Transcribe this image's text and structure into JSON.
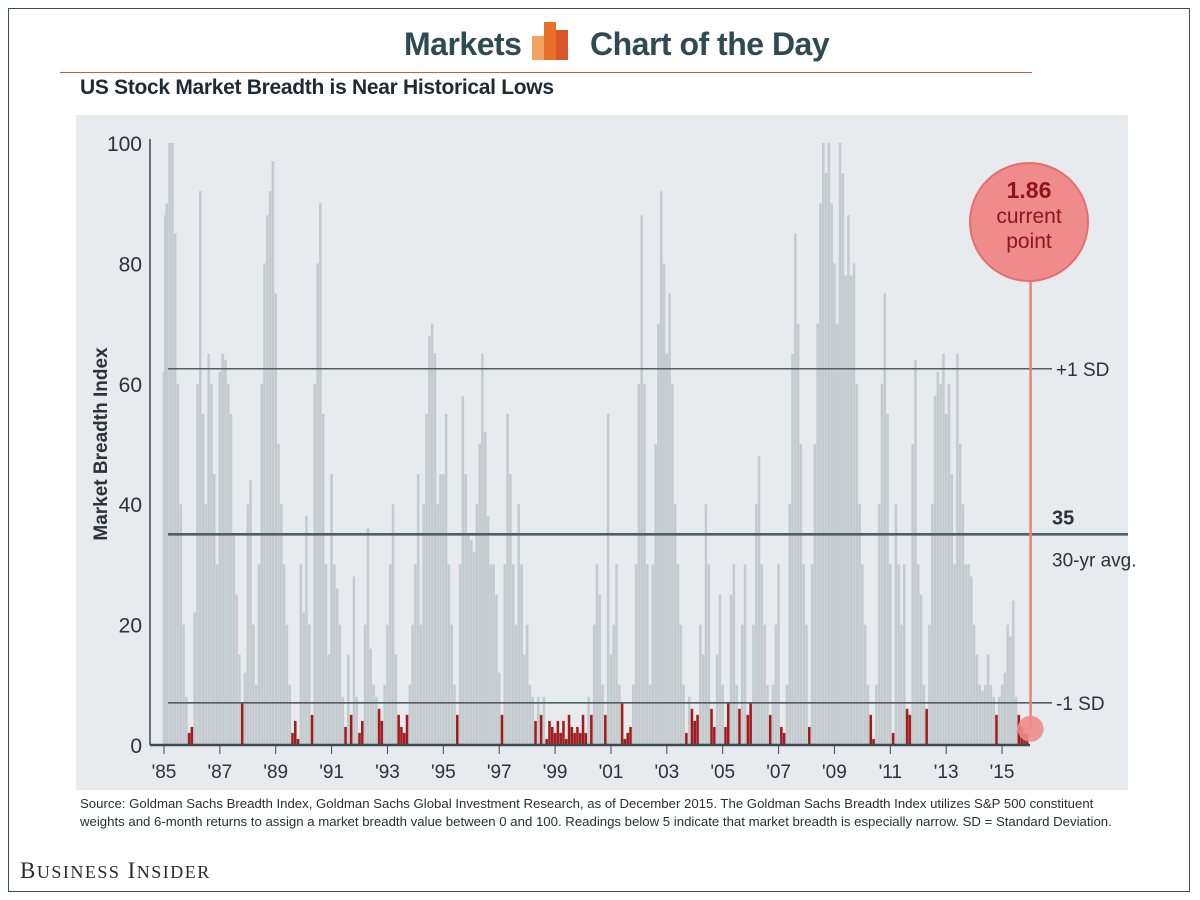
{
  "header": {
    "left_label": "Markets",
    "right_label": "Chart of the Day",
    "logo_icon": "bar-chart-logo-icon",
    "accent_color": "#e8702a"
  },
  "footer": {
    "source_text": "Source: Goldman Sachs Breadth Index, Goldman Sachs Global Investment Research, as of December 2015. The Goldman Sachs Breadth Index utilizes S&P 500 constituent weights and 6-month returns to assign a market breadth value between 0 and 100. Readings below 5 indicate that market breadth is especially narrow. SD = Standard Deviation.",
    "publisher": "Business Insider"
  },
  "chart_data": {
    "type": "bar",
    "title": "US Stock Market Breadth is Near Historical Lows",
    "xlabel": "",
    "ylabel": "Market Breadth Index",
    "ylim": [
      0,
      100
    ],
    "xlim": [
      1984.5,
      2016.0
    ],
    "yticks": [
      0,
      20,
      40,
      60,
      80,
      100
    ],
    "xticks": [
      {
        "x": 1985,
        "label": "'85"
      },
      {
        "x": 1987,
        "label": "'87"
      },
      {
        "x": 1989,
        "label": "'89"
      },
      {
        "x": 1991,
        "label": "'91"
      },
      {
        "x": 1993,
        "label": "'93"
      },
      {
        "x": 1995,
        "label": "'95"
      },
      {
        "x": 1997,
        "label": "'97"
      },
      {
        "x": 1999,
        "label": "'99"
      },
      {
        "x": 2001,
        "label": "'01"
      },
      {
        "x": 2003,
        "label": "'03"
      },
      {
        "x": 2005,
        "label": "'05"
      },
      {
        "x": 2007,
        "label": "'07"
      },
      {
        "x": 2009,
        "label": "'09"
      },
      {
        "x": 2011,
        "label": "'11"
      },
      {
        "x": 2013,
        "label": "'13"
      },
      {
        "x": 2015,
        "label": "'15"
      }
    ],
    "grid": false,
    "colors": {
      "normal": "#c4cbcf",
      "narrow": "#a11d1d",
      "lines": "#4d6068",
      "highlight": "#f08b8b"
    },
    "narrow_threshold": 7,
    "reference_lines": [
      {
        "y": 62.5,
        "label": "+1 SD"
      },
      {
        "y": 35,
        "label": "35",
        "sublabel": "30-yr avg.",
        "emphasis": true
      },
      {
        "y": 7,
        "label": "-1 SD"
      }
    ],
    "current_point": {
      "x": 2015.95,
      "y": 1.86,
      "value_label": "1.86",
      "label_line1": "current",
      "label_line2": "point"
    },
    "anchors": [
      [
        1985.0,
        62
      ],
      [
        1985.05,
        88
      ],
      [
        1985.1,
        90
      ],
      [
        1985.2,
        100
      ],
      [
        1985.3,
        100
      ],
      [
        1985.4,
        85
      ],
      [
        1985.5,
        60
      ],
      [
        1985.6,
        40
      ],
      [
        1985.7,
        20
      ],
      [
        1985.8,
        8
      ],
      [
        1985.9,
        2
      ],
      [
        1986.0,
        3
      ],
      [
        1986.1,
        22
      ],
      [
        1986.2,
        60
      ],
      [
        1986.3,
        92
      ],
      [
        1986.4,
        55
      ],
      [
        1986.5,
        40
      ],
      [
        1986.6,
        65
      ],
      [
        1986.7,
        60
      ],
      [
        1986.8,
        45
      ],
      [
        1986.9,
        30
      ],
      [
        1987.0,
        62
      ],
      [
        1987.1,
        65
      ],
      [
        1987.2,
        64
      ],
      [
        1987.3,
        60
      ],
      [
        1987.4,
        55
      ],
      [
        1987.5,
        35
      ],
      [
        1987.6,
        25
      ],
      [
        1987.7,
        15
      ],
      [
        1987.8,
        7
      ],
      [
        1987.9,
        12
      ],
      [
        1988.0,
        40
      ],
      [
        1988.1,
        44
      ],
      [
        1988.2,
        20
      ],
      [
        1988.3,
        10
      ],
      [
        1988.4,
        30
      ],
      [
        1988.5,
        60
      ],
      [
        1988.6,
        80
      ],
      [
        1988.7,
        88
      ],
      [
        1988.8,
        92
      ],
      [
        1988.9,
        97
      ],
      [
        1989.0,
        75
      ],
      [
        1989.1,
        50
      ],
      [
        1989.2,
        40
      ],
      [
        1989.3,
        30
      ],
      [
        1989.4,
        20
      ],
      [
        1989.5,
        10
      ],
      [
        1989.6,
        2
      ],
      [
        1989.7,
        4
      ],
      [
        1989.8,
        1
      ],
      [
        1989.9,
        30
      ],
      [
        1990.0,
        22
      ],
      [
        1990.1,
        38
      ],
      [
        1990.2,
        20
      ],
      [
        1990.3,
        5
      ],
      [
        1990.4,
        60
      ],
      [
        1990.5,
        80
      ],
      [
        1990.6,
        90
      ],
      [
        1990.7,
        55
      ],
      [
        1990.8,
        30
      ],
      [
        1990.9,
        15
      ],
      [
        1991.0,
        45
      ],
      [
        1991.1,
        30
      ],
      [
        1991.2,
        26
      ],
      [
        1991.3,
        20
      ],
      [
        1991.4,
        8
      ],
      [
        1991.5,
        3
      ],
      [
        1991.6,
        15
      ],
      [
        1991.7,
        5
      ],
      [
        1991.8,
        28
      ],
      [
        1991.9,
        8
      ],
      [
        1992.0,
        2
      ],
      [
        1992.1,
        4
      ],
      [
        1992.2,
        20
      ],
      [
        1992.3,
        36
      ],
      [
        1992.4,
        16
      ],
      [
        1992.5,
        10
      ],
      [
        1992.6,
        8
      ],
      [
        1992.7,
        6
      ],
      [
        1992.8,
        4
      ],
      [
        1992.9,
        10
      ],
      [
        1993.0,
        20
      ],
      [
        1993.1,
        30
      ],
      [
        1993.2,
        40
      ],
      [
        1993.3,
        15
      ],
      [
        1993.4,
        5
      ],
      [
        1993.5,
        3
      ],
      [
        1993.6,
        2
      ],
      [
        1993.7,
        5
      ],
      [
        1993.8,
        10
      ],
      [
        1993.9,
        20
      ],
      [
        1994.0,
        30
      ],
      [
        1994.1,
        45
      ],
      [
        1994.2,
        20
      ],
      [
        1994.3,
        40
      ],
      [
        1994.4,
        55
      ],
      [
        1994.5,
        68
      ],
      [
        1994.6,
        70
      ],
      [
        1994.7,
        65
      ],
      [
        1994.8,
        40
      ],
      [
        1994.9,
        45
      ],
      [
        1995.0,
        45
      ],
      [
        1995.1,
        55
      ],
      [
        1995.2,
        30
      ],
      [
        1995.3,
        20
      ],
      [
        1995.4,
        10
      ],
      [
        1995.5,
        5
      ],
      [
        1995.6,
        30
      ],
      [
        1995.7,
        58
      ],
      [
        1995.8,
        45
      ],
      [
        1995.9,
        35
      ],
      [
        1996.0,
        34
      ],
      [
        1996.1,
        32
      ],
      [
        1996.2,
        40
      ],
      [
        1996.3,
        50
      ],
      [
        1996.4,
        65
      ],
      [
        1996.5,
        52
      ],
      [
        1996.6,
        38
      ],
      [
        1996.7,
        30
      ],
      [
        1996.8,
        30
      ],
      [
        1996.9,
        25
      ],
      [
        1997.0,
        12
      ],
      [
        1997.1,
        5
      ],
      [
        1997.2,
        30
      ],
      [
        1997.3,
        55
      ],
      [
        1997.4,
        45
      ],
      [
        1997.5,
        30
      ],
      [
        1997.6,
        20
      ],
      [
        1997.7,
        40
      ],
      [
        1997.8,
        30
      ],
      [
        1997.9,
        15
      ],
      [
        1998.0,
        20
      ],
      [
        1998.1,
        10
      ],
      [
        1998.2,
        8
      ],
      [
        1998.3,
        4
      ],
      [
        1998.4,
        8
      ],
      [
        1998.5,
        5
      ],
      [
        1998.6,
        8
      ],
      [
        1998.7,
        1
      ],
      [
        1998.8,
        4
      ],
      [
        1998.9,
        3
      ],
      [
        1999.0,
        2
      ],
      [
        1999.1,
        4
      ],
      [
        1999.2,
        2
      ],
      [
        1999.3,
        4
      ],
      [
        1999.4,
        1
      ],
      [
        1999.5,
        5
      ],
      [
        1999.6,
        3
      ],
      [
        1999.7,
        2
      ],
      [
        1999.8,
        3
      ],
      [
        1999.9,
        2
      ],
      [
        2000.0,
        5
      ],
      [
        2000.1,
        2
      ],
      [
        2000.2,
        8
      ],
      [
        2000.3,
        5
      ],
      [
        2000.4,
        20
      ],
      [
        2000.5,
        30
      ],
      [
        2000.6,
        25
      ],
      [
        2000.7,
        10
      ],
      [
        2000.8,
        5
      ],
      [
        2000.9,
        55
      ],
      [
        2001.0,
        15
      ],
      [
        2001.1,
        20
      ],
      [
        2001.2,
        30
      ],
      [
        2001.3,
        10
      ],
      [
        2001.4,
        7
      ],
      [
        2001.5,
        1
      ],
      [
        2001.6,
        2
      ],
      [
        2001.7,
        3
      ],
      [
        2001.8,
        10
      ],
      [
        2001.9,
        30
      ],
      [
        2002.0,
        60
      ],
      [
        2002.1,
        88
      ],
      [
        2002.2,
        60
      ],
      [
        2002.3,
        30
      ],
      [
        2002.4,
        10
      ],
      [
        2002.5,
        30
      ],
      [
        2002.6,
        50
      ],
      [
        2002.7,
        70
      ],
      [
        2002.8,
        92
      ],
      [
        2002.9,
        80
      ],
      [
        2003.0,
        65
      ],
      [
        2003.1,
        75
      ],
      [
        2003.2,
        60
      ],
      [
        2003.3,
        40
      ],
      [
        2003.4,
        30
      ],
      [
        2003.5,
        20
      ],
      [
        2003.6,
        10
      ],
      [
        2003.7,
        2
      ],
      [
        2003.8,
        8
      ],
      [
        2003.9,
        6
      ],
      [
        2004.0,
        4
      ],
      [
        2004.1,
        5
      ],
      [
        2004.2,
        20
      ],
      [
        2004.3,
        15
      ],
      [
        2004.4,
        40
      ],
      [
        2004.5,
        30
      ],
      [
        2004.6,
        6
      ],
      [
        2004.7,
        3
      ],
      [
        2004.8,
        15
      ],
      [
        2004.9,
        25
      ],
      [
        2005.0,
        10
      ],
      [
        2005.1,
        3
      ],
      [
        2005.2,
        7
      ],
      [
        2005.3,
        25
      ],
      [
        2005.4,
        30
      ],
      [
        2005.5,
        10
      ],
      [
        2005.6,
        6
      ],
      [
        2005.7,
        20
      ],
      [
        2005.8,
        30
      ],
      [
        2005.9,
        5
      ],
      [
        2006.0,
        7
      ],
      [
        2006.1,
        20
      ],
      [
        2006.2,
        40
      ],
      [
        2006.3,
        48
      ],
      [
        2006.4,
        30
      ],
      [
        2006.5,
        20
      ],
      [
        2006.6,
        10
      ],
      [
        2006.7,
        5
      ],
      [
        2006.8,
        10
      ],
      [
        2006.9,
        20
      ],
      [
        2007.0,
        30
      ],
      [
        2007.1,
        3
      ],
      [
        2007.2,
        2
      ],
      [
        2007.3,
        10
      ],
      [
        2007.4,
        40
      ],
      [
        2007.5,
        65
      ],
      [
        2007.6,
        85
      ],
      [
        2007.7,
        70
      ],
      [
        2007.8,
        50
      ],
      [
        2007.9,
        30
      ],
      [
        2008.0,
        20
      ],
      [
        2008.1,
        3
      ],
      [
        2008.2,
        30
      ],
      [
        2008.3,
        50
      ],
      [
        2008.4,
        70
      ],
      [
        2008.5,
        90
      ],
      [
        2008.6,
        100
      ],
      [
        2008.7,
        95
      ],
      [
        2008.8,
        100
      ],
      [
        2008.9,
        90
      ],
      [
        2009.0,
        80
      ],
      [
        2009.1,
        70
      ],
      [
        2009.2,
        100
      ],
      [
        2009.3,
        95
      ],
      [
        2009.4,
        78
      ],
      [
        2009.5,
        88
      ],
      [
        2009.6,
        78
      ],
      [
        2009.7,
        80
      ],
      [
        2009.8,
        60
      ],
      [
        2009.9,
        40
      ],
      [
        2010.0,
        30
      ],
      [
        2010.1,
        20
      ],
      [
        2010.2,
        10
      ],
      [
        2010.3,
        5
      ],
      [
        2010.4,
        1
      ],
      [
        2010.5,
        10
      ],
      [
        2010.6,
        40
      ],
      [
        2010.7,
        60
      ],
      [
        2010.8,
        75
      ],
      [
        2010.9,
        55
      ],
      [
        2011.0,
        30
      ],
      [
        2011.1,
        2
      ],
      [
        2011.2,
        40
      ],
      [
        2011.3,
        30
      ],
      [
        2011.4,
        20
      ],
      [
        2011.5,
        30
      ],
      [
        2011.6,
        6
      ],
      [
        2011.7,
        5
      ],
      [
        2011.8,
        50
      ],
      [
        2011.9,
        64
      ],
      [
        2012.0,
        30
      ],
      [
        2012.1,
        25
      ],
      [
        2012.2,
        10
      ],
      [
        2012.3,
        6
      ],
      [
        2012.4,
        20
      ],
      [
        2012.5,
        40
      ],
      [
        2012.6,
        58
      ],
      [
        2012.7,
        62
      ],
      [
        2012.8,
        60
      ],
      [
        2012.9,
        65
      ],
      [
        2013.0,
        55
      ],
      [
        2013.1,
        60
      ],
      [
        2013.2,
        45
      ],
      [
        2013.3,
        30
      ],
      [
        2013.4,
        65
      ],
      [
        2013.5,
        50
      ],
      [
        2013.6,
        40
      ],
      [
        2013.7,
        30
      ],
      [
        2013.8,
        30
      ],
      [
        2013.9,
        28
      ],
      [
        2014.0,
        20
      ],
      [
        2014.1,
        15
      ],
      [
        2014.2,
        10
      ],
      [
        2014.3,
        9
      ],
      [
        2014.4,
        10
      ],
      [
        2014.5,
        15
      ],
      [
        2014.6,
        10
      ],
      [
        2014.7,
        8
      ],
      [
        2014.8,
        5
      ],
      [
        2014.9,
        8
      ],
      [
        2015.0,
        10
      ],
      [
        2015.1,
        12
      ],
      [
        2015.2,
        20
      ],
      [
        2015.3,
        18
      ],
      [
        2015.4,
        24
      ],
      [
        2015.5,
        8
      ],
      [
        2015.6,
        5
      ],
      [
        2015.7,
        3
      ],
      [
        2015.8,
        2
      ],
      [
        2015.9,
        1.86
      ]
    ]
  }
}
